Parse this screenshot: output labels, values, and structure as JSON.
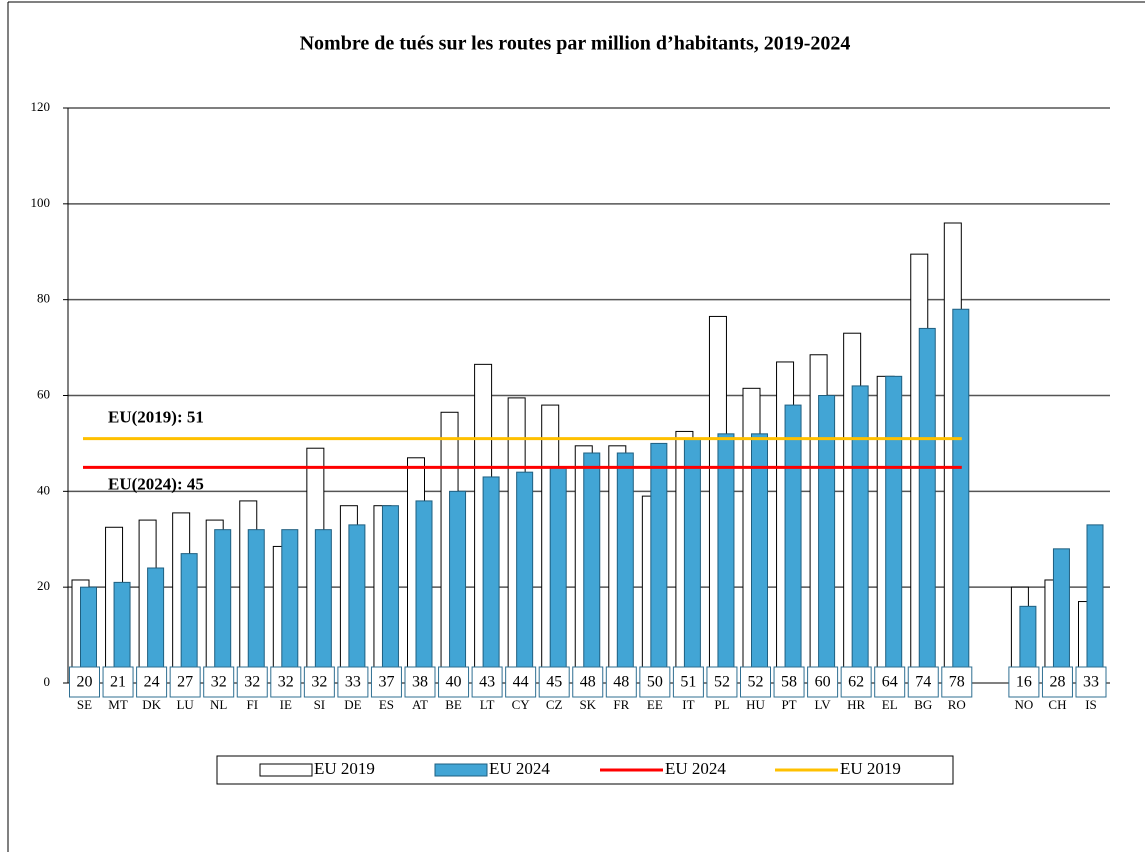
{
  "chart_data": {
    "type": "bar",
    "title": "Nombre de tués sur les routes par million d’habitants, 2019-2024",
    "categories": [
      "SE",
      "MT",
      "DK",
      "LU",
      "NL",
      "FI",
      "IE",
      "SI",
      "DE",
      "ES",
      "AT",
      "BE",
      "LT",
      "CY",
      "CZ",
      "SK",
      "FR",
      "EE",
      "IT",
      "PL",
      "HU",
      "PT",
      "LV",
      "HR",
      "EL",
      "BG",
      "RO",
      null,
      "NO",
      "CH",
      "IS"
    ],
    "series": [
      {
        "name": "EU 2019",
        "color": "#ffffff",
        "values": [
          21.5,
          32.5,
          34,
          35.5,
          34,
          38,
          28.5,
          49,
          37,
          37,
          47,
          56.5,
          66.5,
          59.5,
          58,
          49.5,
          49.5,
          39,
          52.5,
          76.5,
          61.5,
          67,
          68.5,
          73,
          64,
          89.5,
          96,
          null,
          20,
          21.5,
          17
        ]
      },
      {
        "name": "EU 2024",
        "color": "#42a5d5",
        "values": [
          20,
          21,
          24,
          27,
          32,
          32,
          32,
          32,
          33,
          37,
          38,
          40,
          43,
          44,
          45,
          48,
          48,
          50,
          51,
          52,
          52,
          58,
          60,
          62,
          64,
          74,
          78,
          null,
          16,
          28,
          33
        ]
      }
    ],
    "reference_lines": [
      {
        "name": "EU 2024",
        "color": "#ff0000",
        "value": 45,
        "label": "EU(2024): 45"
      },
      {
        "name": "EU 2019",
        "color": "#ffc000",
        "value": 51,
        "label": "EU(2019): 51"
      }
    ],
    "ylim": [
      0,
      120
    ],
    "yticks": [
      0,
      20,
      40,
      60,
      80,
      100,
      120
    ],
    "grid": true
  }
}
